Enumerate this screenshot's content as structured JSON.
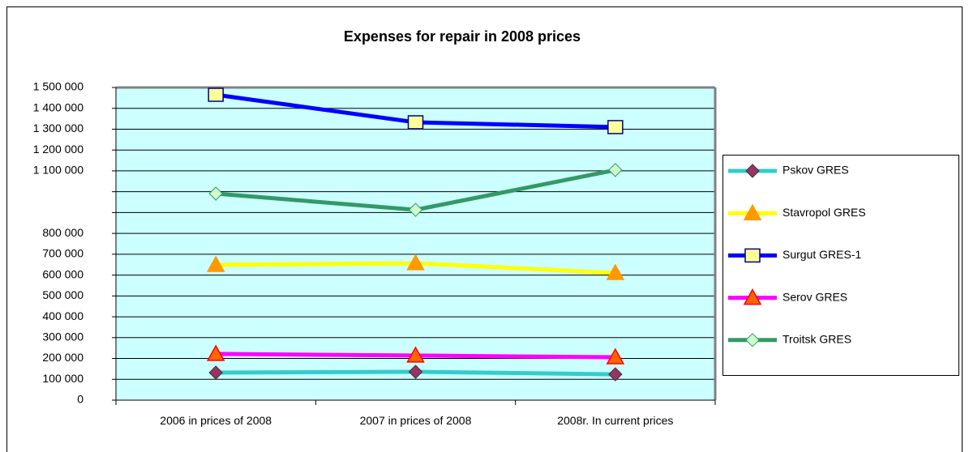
{
  "chart_data": {
    "type": "line",
    "title": "Expenses for repair in 2008 prices",
    "categories": [
      "2006 in prices of 2008",
      "2007 in prices of 2008",
      "2008r. In current prices"
    ],
    "series": [
      {
        "name": "Pskov GRES",
        "color": "#33cccc",
        "marker": "diamond",
        "marker_color": "#993366",
        "values": [
          132000,
          136000,
          124000
        ]
      },
      {
        "name": "Stavropol GRES",
        "color": "#ffff00",
        "marker": "triangle",
        "marker_color": "#ff9900",
        "values": [
          649000,
          657000,
          610000
        ]
      },
      {
        "name": "Surgut GRES-1",
        "color": "#0000ff",
        "marker": "square",
        "marker_color": "#ffff99",
        "values": [
          1465000,
          1333000,
          1310000
        ]
      },
      {
        "name": "Serov GRES",
        "color": "#ff00ff",
        "marker": "triangle",
        "marker_color": "#ff6600",
        "values": [
          222000,
          214000,
          206000
        ]
      },
      {
        "name": "Troitsk GRES",
        "color": "#339966",
        "marker": "diamond",
        "marker_color": "#ccffcc",
        "values": [
          991000,
          913000,
          1104000
        ]
      }
    ],
    "ylim": [
      0,
      1500000
    ],
    "yticks": [
      0,
      {
        "value": 100000,
        "label": "100 000"
      },
      {
        "value": 200000,
        "label": "200 000"
      },
      {
        "value": 300000,
        "label": "300 000"
      },
      {
        "value": 400000,
        "label": "400 000"
      },
      {
        "value": 500000,
        "label": "500 000"
      },
      {
        "value": 600000,
        "label": "600 000"
      },
      {
        "value": 700000,
        "label": "700 000"
      },
      {
        "value": 800000,
        "label": "800 000"
      },
      {
        "value": 900000,
        "label": null
      },
      {
        "value": 1000000,
        "label": null
      },
      {
        "value": 1100000,
        "label": "1 100 000"
      },
      {
        "value": 1200000,
        "label": "1 200 000"
      },
      {
        "value": 1300000,
        "label": "1 300 000"
      },
      {
        "value": 1400000,
        "label": "1 400 000"
      },
      {
        "value": 1500000,
        "label": "1 500 000"
      }
    ],
    "grid": true,
    "legend": "right"
  }
}
